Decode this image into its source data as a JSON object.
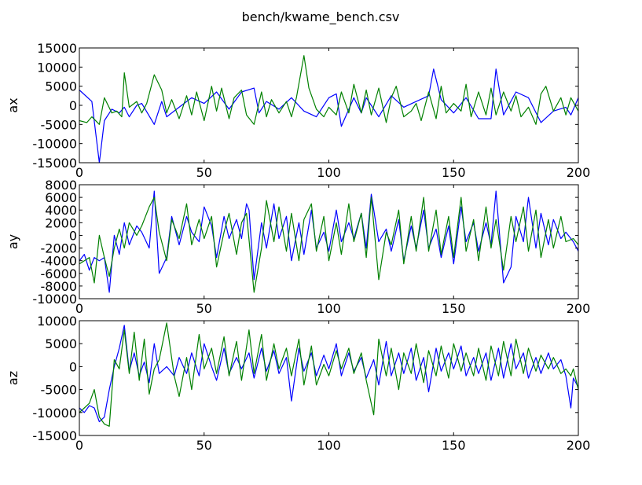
{
  "figure": {
    "title": "bench/kwame_bench.csv"
  },
  "chart_data": [
    {
      "type": "line",
      "title": "",
      "xlabel": "",
      "ylabel": "ax",
      "xlim": [
        0,
        200
      ],
      "ylim": [
        -15000,
        15000
      ],
      "xticks": [
        0,
        50,
        100,
        150,
        200
      ],
      "yticks": [
        -15000,
        -10000,
        -5000,
        0,
        5000,
        10000,
        15000
      ],
      "grid": false,
      "series": [
        {
          "color": "#0000ff",
          "x": [
            0,
            5,
            8,
            10,
            13,
            16,
            18,
            20,
            23,
            25,
            30,
            33,
            35,
            40,
            45,
            50,
            55,
            60,
            65,
            70,
            72,
            75,
            80,
            85,
            90,
            95,
            100,
            103,
            105,
            110,
            113,
            115,
            120,
            125,
            130,
            135,
            140,
            142,
            145,
            150,
            155,
            160,
            165,
            167,
            170,
            175,
            180,
            185,
            190,
            195,
            197,
            200
          ],
          "y": [
            4000,
            1000,
            -15000,
            -4000,
            -1000,
            -2000,
            -500,
            -3000,
            0,
            500,
            -5000,
            1000,
            -3000,
            -500,
            2000,
            500,
            3500,
            -1000,
            3500,
            4500,
            -2000,
            1000,
            -1000,
            2000,
            -1500,
            -3000,
            2000,
            3000,
            -5500,
            2000,
            -2000,
            2000,
            -3000,
            2500,
            -500,
            1000,
            2500,
            9500,
            1500,
            -2000,
            2000,
            -3500,
            -3500,
            9500,
            -2500,
            3500,
            2000,
            -4500,
            -1500,
            -500,
            -2500,
            2000
          ]
        },
        {
          "color": "#008000",
          "x": [
            0,
            3,
            5,
            8,
            10,
            13,
            15,
            17,
            18,
            20,
            23,
            25,
            27,
            30,
            33,
            35,
            37,
            40,
            43,
            45,
            47,
            50,
            53,
            55,
            57,
            60,
            62,
            65,
            67,
            70,
            73,
            75,
            77,
            80,
            83,
            85,
            87,
            90,
            92,
            95,
            98,
            100,
            103,
            105,
            108,
            110,
            113,
            115,
            117,
            120,
            123,
            125,
            127,
            130,
            133,
            135,
            137,
            140,
            143,
            145,
            147,
            150,
            153,
            155,
            157,
            160,
            163,
            165,
            167,
            170,
            173,
            175,
            177,
            180,
            183,
            185,
            187,
            190,
            193,
            195,
            197,
            200
          ],
          "y": [
            -4000,
            -4500,
            -3000,
            -5000,
            2000,
            -2000,
            -1500,
            -3000,
            8500,
            -500,
            1000,
            -2000,
            500,
            8000,
            4000,
            -2000,
            1500,
            -3500,
            2500,
            -2500,
            3500,
            -4000,
            5000,
            -1500,
            4500,
            -3500,
            2000,
            4000,
            -2500,
            -5000,
            3500,
            -3000,
            1500,
            -2000,
            1000,
            -3000,
            2000,
            13000,
            4500,
            -1000,
            -3000,
            -500,
            -2500,
            3500,
            -2000,
            5500,
            -2000,
            4000,
            -2500,
            4500,
            -4500,
            2000,
            5000,
            -3000,
            -1500,
            500,
            -4000,
            3500,
            -3500,
            5000,
            -2000,
            500,
            -1500,
            5500,
            -3000,
            3500,
            -2500,
            4500,
            -2500,
            3500,
            -1500,
            2500,
            -3000,
            -500,
            -5000,
            3000,
            5000,
            -1500,
            2000,
            -2500,
            2000,
            -1500
          ]
        }
      ]
    },
    {
      "type": "line",
      "title": "",
      "xlabel": "",
      "ylabel": "ay",
      "xlim": [
        0,
        200
      ],
      "ylim": [
        -10000,
        8000
      ],
      "xticks": [
        0,
        50,
        100,
        150,
        200
      ],
      "yticks": [
        -10000,
        -8000,
        -6000,
        -4000,
        -2000,
        0,
        2000,
        4000,
        6000,
        8000
      ],
      "grid": false,
      "series": [
        {
          "color": "#0000ff",
          "x": [
            0,
            2,
            4,
            6,
            8,
            10,
            12,
            14,
            16,
            18,
            20,
            23,
            25,
            28,
            30,
            32,
            35,
            37,
            40,
            43,
            45,
            48,
            50,
            53,
            55,
            58,
            60,
            63,
            65,
            67,
            68,
            70,
            73,
            75,
            78,
            80,
            83,
            85,
            88,
            90,
            93,
            95,
            98,
            100,
            103,
            105,
            108,
            110,
            113,
            115,
            117,
            120,
            123,
            125,
            128,
            130,
            133,
            135,
            138,
            140,
            143,
            145,
            148,
            150,
            153,
            155,
            158,
            160,
            163,
            165,
            167,
            170,
            173,
            175,
            178,
            180,
            183,
            185,
            188,
            190,
            193,
            195,
            198,
            200
          ],
          "y": [
            -4000,
            -3000,
            -5500,
            -3500,
            -4000,
            -3500,
            -9000,
            0,
            -3000,
            2000,
            -1500,
            1500,
            500,
            -2000,
            7000,
            -6000,
            -3500,
            3000,
            -1500,
            3000,
            500,
            -1000,
            4500,
            1500,
            -3500,
            3000,
            -500,
            2500,
            -500,
            5000,
            4000,
            -7000,
            2000,
            -2000,
            5000,
            -500,
            3000,
            -4000,
            2000,
            -3000,
            4000,
            -2000,
            500,
            -2500,
            4000,
            -1000,
            2000,
            -500,
            3500,
            -2000,
            6500,
            -1000,
            1000,
            -2500,
            2500,
            -4000,
            1500,
            -2000,
            4000,
            -2000,
            1000,
            -3500,
            1500,
            -4500,
            4500,
            -1000,
            2000,
            -2500,
            2000,
            -1500,
            7000,
            -7500,
            -5000,
            3000,
            -1000,
            6000,
            -2000,
            3500,
            -1500,
            2500,
            -500,
            500,
            -1000,
            -2500
          ]
        },
        {
          "color": "#008000",
          "x": [
            0,
            2,
            4,
            6,
            8,
            10,
            12,
            14,
            16,
            18,
            20,
            23,
            25,
            28,
            30,
            32,
            35,
            37,
            40,
            43,
            45,
            48,
            50,
            53,
            55,
            58,
            60,
            63,
            65,
            67,
            70,
            73,
            75,
            78,
            80,
            83,
            85,
            88,
            90,
            93,
            95,
            98,
            100,
            103,
            105,
            108,
            110,
            113,
            115,
            117,
            120,
            123,
            125,
            128,
            130,
            133,
            135,
            138,
            140,
            143,
            145,
            148,
            150,
            153,
            155,
            158,
            160,
            163,
            165,
            167,
            170,
            173,
            175,
            178,
            180,
            183,
            185,
            188,
            190,
            193,
            195,
            198,
            200
          ],
          "y": [
            -4500,
            -4000,
            -3500,
            -7500,
            0,
            -3500,
            -6500,
            -2000,
            1000,
            -2000,
            2000,
            0,
            1500,
            4500,
            6000,
            500,
            -4000,
            2500,
            -500,
            5000,
            -1500,
            2500,
            -500,
            3000,
            -5000,
            500,
            3500,
            -3000,
            2000,
            3500,
            -9000,
            -2000,
            5500,
            -1000,
            4500,
            -2500,
            3500,
            -4000,
            2500,
            5000,
            -2500,
            3000,
            -4000,
            2000,
            -3000,
            5000,
            -1000,
            3500,
            -3500,
            6000,
            -7000,
            500,
            -1500,
            4000,
            -4500,
            3000,
            -2500,
            6000,
            -2500,
            4000,
            -3000,
            3000,
            -3500,
            6000,
            -2500,
            2500,
            -4000,
            4500,
            -2000,
            2500,
            -5500,
            3000,
            -1000,
            4500,
            -2500,
            4000,
            -3500,
            2500,
            -2000,
            3000,
            -1000,
            -500,
            -1500
          ]
        }
      ]
    },
    {
      "type": "line",
      "title": "",
      "xlabel": "",
      "ylabel": "az",
      "xlim": [
        0,
        200
      ],
      "ylim": [
        -15000,
        10000
      ],
      "xticks": [
        0,
        50,
        100,
        150,
        200
      ],
      "yticks": [
        -15000,
        -10000,
        -5000,
        0,
        5000,
        10000
      ],
      "grid": false,
      "series": [
        {
          "color": "#0000ff",
          "x": [
            0,
            2,
            4,
            6,
            8,
            10,
            12,
            14,
            16,
            18,
            20,
            22,
            24,
            26,
            28,
            30,
            32,
            35,
            38,
            40,
            43,
            45,
            48,
            50,
            53,
            55,
            58,
            60,
            63,
            65,
            68,
            70,
            73,
            75,
            78,
            80,
            83,
            85,
            88,
            90,
            93,
            95,
            98,
            100,
            103,
            105,
            108,
            110,
            113,
            115,
            118,
            120,
            123,
            125,
            128,
            130,
            133,
            135,
            138,
            140,
            143,
            145,
            148,
            150,
            153,
            155,
            158,
            160,
            163,
            165,
            168,
            170,
            173,
            175,
            178,
            180,
            183,
            185,
            188,
            190,
            193,
            195,
            197,
            198,
            200
          ],
          "y": [
            -9000,
            -10000,
            -8500,
            -9000,
            -12000,
            -11000,
            -5000,
            0,
            4000,
            9000,
            -1000,
            3000,
            -2000,
            1000,
            -3500,
            5000,
            -1500,
            0,
            -2000,
            2000,
            -1500,
            3000,
            -2000,
            5000,
            0,
            -3000,
            4000,
            -1500,
            2000,
            -500,
            3000,
            -2500,
            4000,
            -1000,
            3500,
            -1500,
            2000,
            -7500,
            4000,
            -1000,
            3000,
            -2000,
            2500,
            -500,
            5000,
            -2000,
            3000,
            -1000,
            2000,
            -2500,
            1500,
            -4000,
            5500,
            -2000,
            3000,
            -1500,
            4000,
            -3000,
            2000,
            -5500,
            4000,
            -1000,
            3000,
            -500,
            4500,
            -2000,
            2000,
            -1500,
            3000,
            -3000,
            4000,
            -2500,
            5000,
            -500,
            3000,
            -2500,
            2000,
            -1500,
            3000,
            -500,
            1500,
            -2000,
            -9000,
            -2500,
            -4500
          ]
        },
        {
          "color": "#008000",
          "x": [
            0,
            2,
            4,
            6,
            8,
            10,
            12,
            14,
            16,
            18,
            20,
            22,
            24,
            26,
            28,
            30,
            32,
            35,
            38,
            40,
            43,
            45,
            48,
            50,
            53,
            55,
            58,
            60,
            63,
            65,
            68,
            70,
            73,
            75,
            78,
            80,
            83,
            85,
            88,
            90,
            93,
            95,
            98,
            100,
            103,
            105,
            108,
            110,
            113,
            115,
            118,
            120,
            123,
            125,
            128,
            130,
            133,
            135,
            138,
            140,
            143,
            145,
            148,
            150,
            153,
            155,
            158,
            160,
            163,
            165,
            168,
            170,
            173,
            175,
            178,
            180,
            183,
            185,
            188,
            190,
            193,
            195,
            197,
            198,
            200
          ],
          "y": [
            -10000,
            -9000,
            -8000,
            -5000,
            -11000,
            -12500,
            -13000,
            1500,
            -500,
            8000,
            -1500,
            7500,
            -3000,
            6000,
            -6000,
            -500,
            1500,
            9500,
            -2000,
            -6500,
            2000,
            -5000,
            7000,
            -500,
            4000,
            -1500,
            6500,
            -2000,
            5500,
            -3000,
            8000,
            -1500,
            7000,
            -3000,
            5000,
            -500,
            4000,
            -2000,
            6000,
            -4000,
            4500,
            -4000,
            500,
            -2000,
            3500,
            -500,
            4000,
            -1500,
            3000,
            -3000,
            -10500,
            6000,
            -2000,
            4000,
            -5000,
            3000,
            -1500,
            5000,
            -3500,
            3500,
            -2000,
            4500,
            -2500,
            5000,
            -1000,
            3000,
            -2000,
            4000,
            -3000,
            4500,
            -2000,
            5500,
            -2000,
            6000,
            -1500,
            4000,
            -1000,
            2500,
            -500,
            2000,
            -1500,
            -500,
            -2000,
            -500,
            -5000
          ]
        }
      ]
    }
  ]
}
